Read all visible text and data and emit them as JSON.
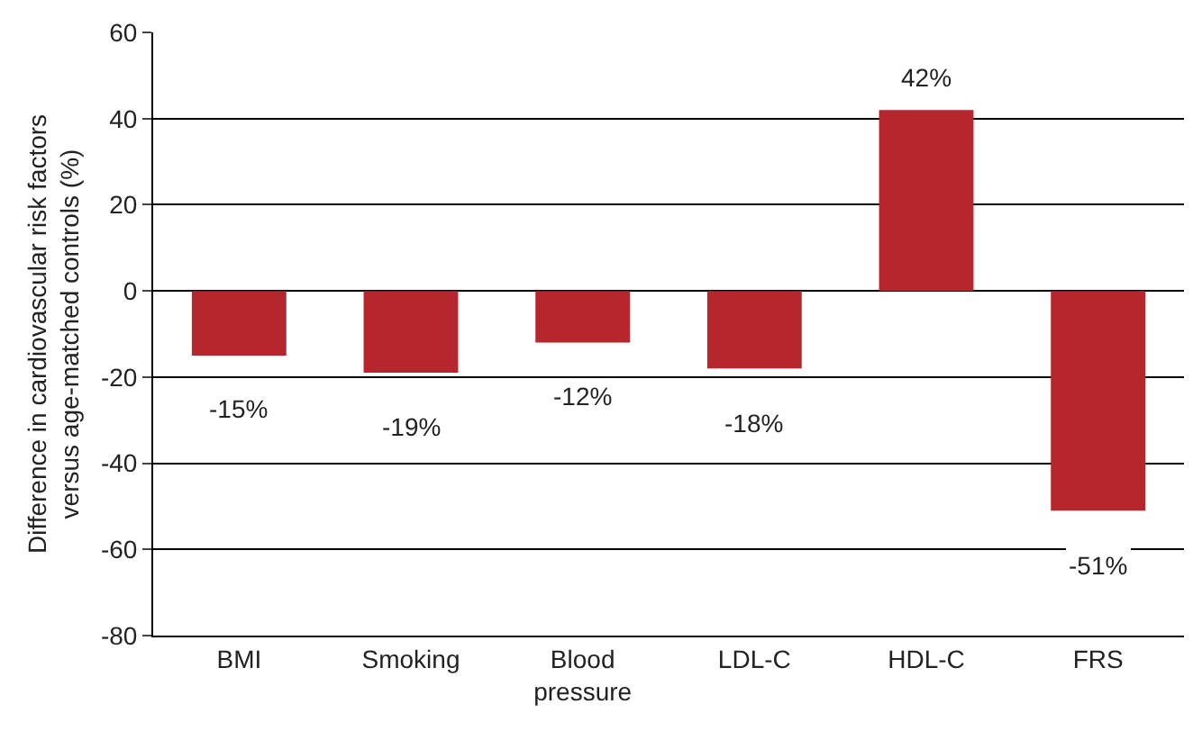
{
  "chart_data": {
    "type": "bar",
    "ylabel": "Difference in cardiovascular risk factors versus age-matched controls (%)",
    "categories": [
      "BMI",
      "Smoking",
      "Blood pressure",
      "LDL-C",
      "HDL-C",
      "FRS"
    ],
    "values": [
      -15,
      -19,
      -12,
      -18,
      42,
      -51
    ],
    "value_labels": [
      "-15%",
      "-19%",
      "-12%",
      "-18%",
      "42%",
      "-51%"
    ],
    "color": "#b5272d",
    "ylim": [
      -80,
      60
    ],
    "yticks": [
      -80,
      -60,
      -40,
      -20,
      0,
      20,
      40,
      60
    ],
    "grid": "y"
  }
}
